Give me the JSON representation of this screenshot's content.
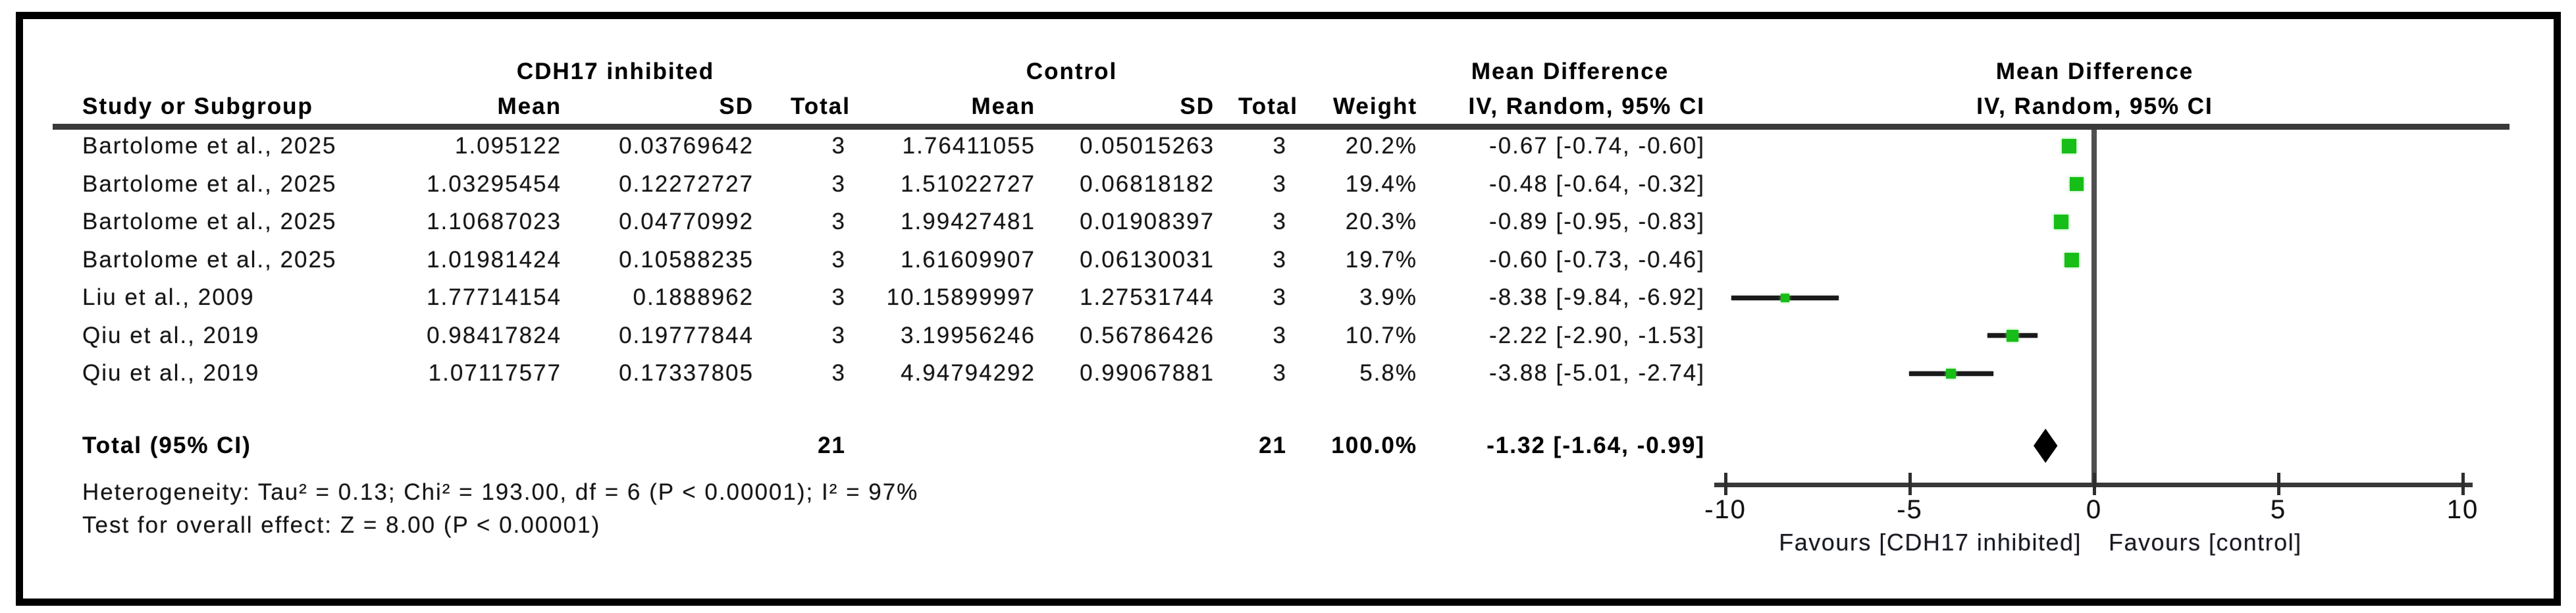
{
  "figure": {
    "header": {
      "group1": "CDH17 inhibited",
      "group2": "Control",
      "md_label": "Mean Difference",
      "md_sub": "IV, Random, 95% CI",
      "plot_label": "Mean Difference",
      "plot_sub": "IV, Random, 95% CI",
      "col_study": "Study or Subgroup",
      "col_mean": "Mean",
      "col_sd": "SD",
      "col_total": "Total",
      "col_weight": "Weight"
    },
    "rows": [
      {
        "study": "Bartolome et al., 2025",
        "mean1": "1.095122",
        "sd1": "0.03769642",
        "total1": "3",
        "mean2": "1.76411055",
        "sd2": "0.05015263",
        "total2": "3",
        "weight": "20.2%",
        "ci": "-0.67 [-0.74, -0.60]"
      },
      {
        "study": "Bartolome et al., 2025",
        "mean1": "1.03295454",
        "sd1": "0.12272727",
        "total1": "3",
        "mean2": "1.51022727",
        "sd2": "0.06818182",
        "total2": "3",
        "weight": "19.4%",
        "ci": "-0.48 [-0.64, -0.32]"
      },
      {
        "study": "Bartolome et al., 2025",
        "mean1": "1.10687023",
        "sd1": "0.04770992",
        "total1": "3",
        "mean2": "1.99427481",
        "sd2": "0.01908397",
        "total2": "3",
        "weight": "20.3%",
        "ci": "-0.89 [-0.95, -0.83]"
      },
      {
        "study": "Bartolome et al., 2025",
        "mean1": "1.01981424",
        "sd1": "0.10588235",
        "total1": "3",
        "mean2": "1.61609907",
        "sd2": "0.06130031",
        "total2": "3",
        "weight": "19.7%",
        "ci": "-0.60 [-0.73, -0.46]"
      },
      {
        "study": "Liu et al., 2009",
        "mean1": "1.77714154",
        "sd1": "0.1888962",
        "total1": "3",
        "mean2": "10.15899997",
        "sd2": "1.27531744",
        "total2": "3",
        "weight": "3.9%",
        "ci": "-8.38 [-9.84, -6.92]"
      },
      {
        "study": "Qiu et al., 2019",
        "mean1": "0.98417824",
        "sd1": "0.19777844",
        "total1": "3",
        "mean2": "3.19956246",
        "sd2": "0.56786426",
        "total2": "3",
        "weight": "10.7%",
        "ci": "-2.22 [-2.90, -1.53]"
      },
      {
        "study": "Qiu et al., 2019",
        "mean1": "1.07117577",
        "sd1": "0.17337805",
        "total1": "3",
        "mean2": "4.94794292",
        "sd2": "0.99067881",
        "total2": "3",
        "weight": "5.8%",
        "ci": "-3.88 [-5.01, -2.74]"
      }
    ],
    "totals": {
      "label": "Total (95% CI)",
      "total1": "21",
      "total2": "21",
      "weight": "100.0%",
      "ci": "-1.32 [-1.64, -0.99]"
    },
    "footer": {
      "heterogeneity": "Heterogeneity: Tau² = 0.13; Chi² = 193.00, df = 6 (P < 0.00001); I² = 97%",
      "overall": "Test for overall effect: Z = 8.00 (P < 0.00001)"
    },
    "axis": {
      "ticks": [
        "-10",
        "-5",
        "0",
        "5",
        "10"
      ],
      "favours_left": "Favours [CDH17 inhibited]",
      "favours_right": "Favours [control]"
    },
    "colors": {
      "marker_green": "#17be17",
      "ci_line": "#1a1a1a",
      "diamond": "#000000",
      "axis": "#383838"
    }
  },
  "chart_data": {
    "type": "scatter",
    "subtype": "forest_plot_mean_difference",
    "title": "Mean Difference IV, Random, 95% CI",
    "x_axis": {
      "min": -10,
      "max": 10,
      "ticks": [
        -10,
        -5,
        0,
        5,
        10
      ],
      "label_left": "Favours [CDH17 inhibited]",
      "label_right": "Favours [control]"
    },
    "studies": [
      {
        "name": "Bartolome et al., 2025",
        "md": -0.67,
        "ci_low": -0.74,
        "ci_high": -0.6,
        "weight_pct": 20.2
      },
      {
        "name": "Bartolome et al., 2025",
        "md": -0.48,
        "ci_low": -0.64,
        "ci_high": -0.32,
        "weight_pct": 19.4
      },
      {
        "name": "Bartolome et al., 2025",
        "md": -0.89,
        "ci_low": -0.95,
        "ci_high": -0.83,
        "weight_pct": 20.3
      },
      {
        "name": "Bartolome et al., 2025",
        "md": -0.6,
        "ci_low": -0.73,
        "ci_high": -0.46,
        "weight_pct": 19.7
      },
      {
        "name": "Liu et al., 2009",
        "md": -8.38,
        "ci_low": -9.84,
        "ci_high": -6.92,
        "weight_pct": 3.9
      },
      {
        "name": "Qiu et al., 2019",
        "md": -2.22,
        "ci_low": -2.9,
        "ci_high": -1.53,
        "weight_pct": 10.7
      },
      {
        "name": "Qiu et al., 2019",
        "md": -3.88,
        "ci_low": -5.01,
        "ci_high": -2.74,
        "weight_pct": 5.8
      }
    ],
    "total": {
      "name": "Total (95% CI)",
      "md": -1.32,
      "ci_low": -1.64,
      "ci_high": -0.99,
      "weight_pct": 100.0
    }
  }
}
